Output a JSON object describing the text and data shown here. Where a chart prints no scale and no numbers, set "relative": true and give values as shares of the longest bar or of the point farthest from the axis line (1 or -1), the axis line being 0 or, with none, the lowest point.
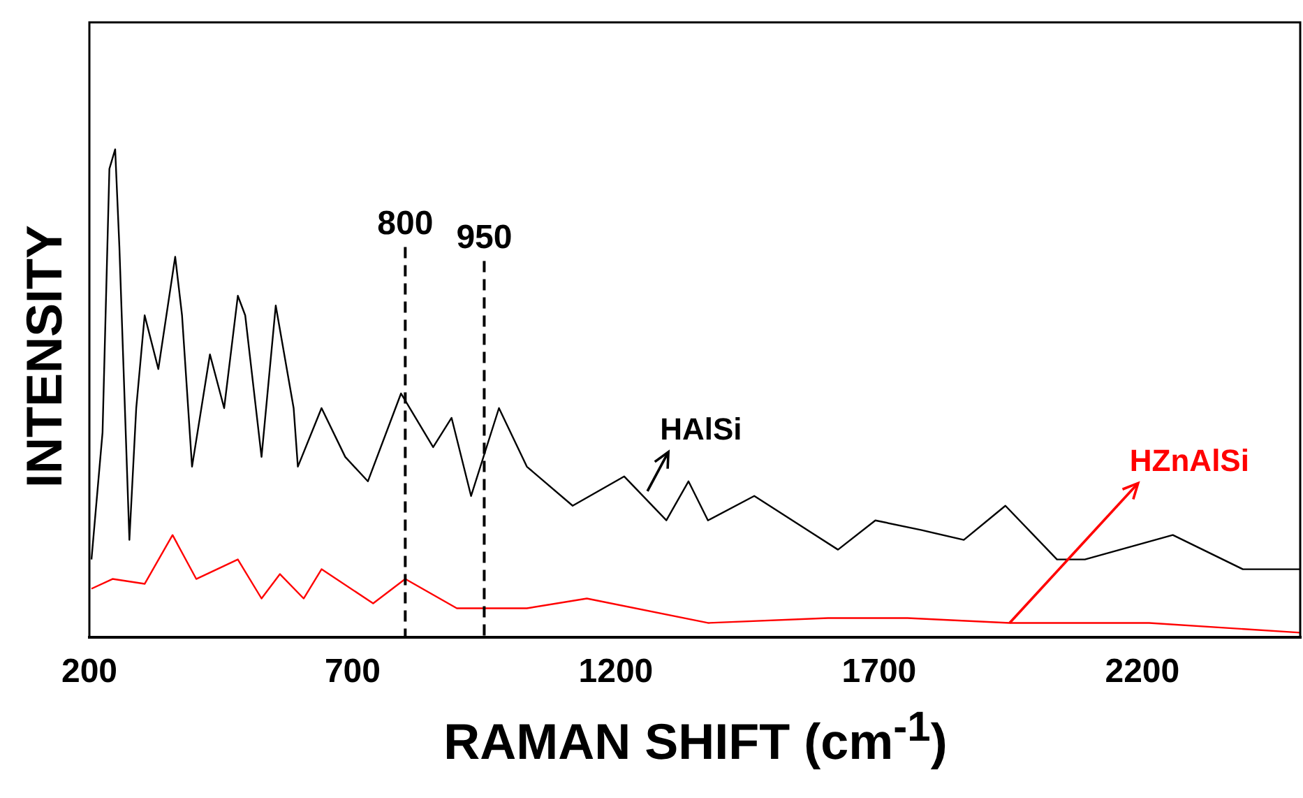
{
  "chart_data": {
    "type": "line",
    "relative": true,
    "xlabel": "RAMAN SHIFT (cm$^{-1}$)",
    "ylabel": "INTENSITY",
    "xlim": [
      200,
      2500
    ],
    "xticks": [
      200,
      700,
      1200,
      1700,
      2200
    ],
    "grid": false,
    "legend": false,
    "marker": "none",
    "line_style": "solid",
    "series": [
      {
        "color": "#000000",
        "x": [
          204,
          225,
          238,
          249,
          257,
          276,
          289,
          305,
          331,
          363,
          376,
          395,
          429,
          456,
          482,
          496,
          527,
          554,
          588,
          596,
          641,
          686,
          729,
          792,
          853,
          888,
          925,
          978,
          1031,
          1118,
          1216,
          1296,
          1338,
          1375,
          1463,
          1622,
          1693,
          1781,
          1861,
          1940,
          2038,
          2091,
          2258,
          2391,
          2500
        ],
        "values": [
          0.16,
          0.42,
          0.96,
          1.0,
          0.8,
          0.2,
          0.47,
          0.66,
          0.55,
          0.78,
          0.66,
          0.35,
          0.58,
          0.47,
          0.7,
          0.66,
          0.37,
          0.68,
          0.47,
          0.35,
          0.47,
          0.37,
          0.32,
          0.5,
          0.39,
          0.45,
          0.29,
          0.47,
          0.35,
          0.27,
          0.33,
          0.24,
          0.32,
          0.24,
          0.29,
          0.18,
          0.24,
          0.22,
          0.2,
          0.27,
          0.16,
          0.16,
          0.21,
          0.14,
          0.14
        ]
      },
      {
        "color": "#ff0000",
        "x": [
          204,
          244,
          305,
          358,
          403,
          482,
          527,
          562,
          607,
          641,
          739,
          800,
          898,
          1031,
          1145,
          1375,
          1603,
          1754,
          1948,
          2213,
          2500
        ],
        "values": [
          0.1,
          0.12,
          0.11,
          0.21,
          0.12,
          0.16,
          0.08,
          0.13,
          0.08,
          0.14,
          0.07,
          0.12,
          0.06,
          0.06,
          0.08,
          0.03,
          0.04,
          0.04,
          0.03,
          0.03,
          0.01
        ]
      }
    ],
    "ref_lines": [
      {
        "axis": "x",
        "value": 800,
        "label": "800",
        "line_style": "dashed"
      },
      {
        "axis": "x",
        "value": 950,
        "label": "950",
        "line_style": "dashed"
      }
    ],
    "annotations": [
      {
        "text": "HAlSi",
        "x": 1260,
        "y": 0.3
      },
      {
        "text": "HZnAlSi",
        "x": 1948,
        "y": 0.03
      }
    ]
  }
}
